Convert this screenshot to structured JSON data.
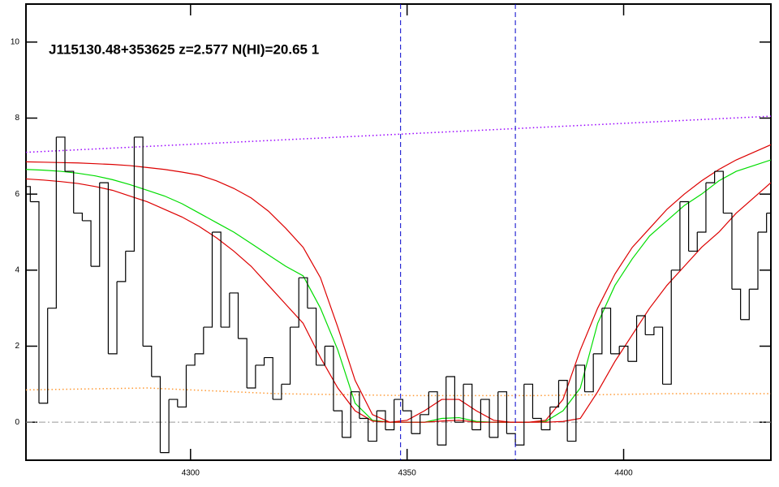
{
  "chart_data": {
    "type": "line",
    "title": "J115130.48+353625 z=2.577 N(HI)=20.65 1",
    "xlim": [
      4262,
      4434
    ],
    "ylim": [
      -1,
      11
    ],
    "xticks": [
      4300,
      4350,
      4400
    ],
    "yticks": [
      0,
      2,
      4,
      6,
      8,
      10
    ],
    "vlines": [
      4348.5,
      4375
    ],
    "vline_color": "#0000cc",
    "flux": {
      "color": "#000000",
      "step": true,
      "x": [
        4262,
        4264,
        4266,
        4268,
        4270,
        4272,
        4274,
        4276,
        4278,
        4280,
        4282,
        4284,
        4286,
        4288,
        4290,
        4292,
        4294,
        4296,
        4298,
        4300,
        4302,
        4304,
        4306,
        4308,
        4310,
        4312,
        4314,
        4316,
        4318,
        4320,
        4322,
        4324,
        4326,
        4328,
        4330,
        4332,
        4334,
        4336,
        4338,
        4340,
        4342,
        4344,
        4346,
        4348,
        4350,
        4352,
        4354,
        4356,
        4358,
        4360,
        4362,
        4364,
        4366,
        4368,
        4370,
        4372,
        4374,
        4376,
        4378,
        4380,
        4382,
        4384,
        4386,
        4388,
        4390,
        4392,
        4394,
        4396,
        4398,
        4400,
        4402,
        4404,
        4406,
        4408,
        4410,
        4412,
        4414,
        4416,
        4418,
        4420,
        4422,
        4424,
        4426,
        4428,
        4430,
        4432,
        4434
      ],
      "values": [
        6.2,
        5.8,
        0.5,
        3,
        7.5,
        6.6,
        5.5,
        5.3,
        4.1,
        6.3,
        1.8,
        3.7,
        4.5,
        7.5,
        2,
        1.2,
        -0.8,
        0.6,
        0.4,
        1.5,
        1.8,
        2.5,
        5,
        2.5,
        3.4,
        2.2,
        0.9,
        1.5,
        1.7,
        0.6,
        1,
        2.5,
        3.8,
        3,
        1.5,
        2,
        0.3,
        -0.4,
        0.8,
        0.1,
        -0.5,
        0.3,
        -0.2,
        0.6,
        0.3,
        -0.3,
        0.2,
        0.8,
        -0.6,
        1.2,
        0,
        1,
        -0.2,
        0.6,
        -0.4,
        0.8,
        -0.3,
        -0.6,
        1,
        0.1,
        -0.2,
        0.4,
        1.1,
        -0.5,
        1.5,
        0.8,
        1.8,
        3,
        1.8,
        2,
        1.6,
        2.8,
        2.3,
        2.5,
        1,
        4,
        5.8,
        4.5,
        5,
        6.3,
        6.6,
        5.5,
        3.5,
        2.7,
        3.5,
        5,
        5.5
      ]
    },
    "model_x": [
      4262,
      4266,
      4270,
      4274,
      4278,
      4282,
      4286,
      4290,
      4294,
      4298,
      4302,
      4306,
      4310,
      4314,
      4318,
      4322,
      4326,
      4330,
      4334,
      4338,
      4342,
      4346,
      4350,
      4354,
      4358,
      4362,
      4366,
      4370,
      4374,
      4378,
      4382,
      4386,
      4390,
      4394,
      4398,
      4402,
      4406,
      4410,
      4414,
      4418,
      4422,
      4426,
      4430,
      4434
    ],
    "series": [
      {
        "color": "#00dd00",
        "values": [
          6.65,
          6.63,
          6.6,
          6.55,
          6.48,
          6.38,
          6.25,
          6.1,
          5.95,
          5.75,
          5.5,
          5.25,
          5,
          4.7,
          4.4,
          4.1,
          3.85,
          3,
          1.9,
          0.5,
          0.05,
          0,
          0,
          0,
          0.1,
          0.12,
          0.02,
          0,
          0,
          0,
          0.02,
          0.3,
          0.9,
          2.6,
          3.6,
          4.3,
          4.9,
          5.3,
          5.7,
          6,
          6.35,
          6.6,
          6.75,
          6.9
        ]
      },
      {
        "color": "#dd0000",
        "values": [
          6.85,
          6.84,
          6.83,
          6.82,
          6.8,
          6.78,
          6.75,
          6.7,
          6.65,
          6.58,
          6.5,
          6.35,
          6.15,
          5.9,
          5.55,
          5.1,
          4.6,
          3.8,
          2.5,
          1.1,
          0.2,
          0,
          0.05,
          0.3,
          0.6,
          0.6,
          0.3,
          0.05,
          0,
          0,
          0.05,
          0.6,
          1.9,
          3,
          3.9,
          4.6,
          5.1,
          5.6,
          6,
          6.35,
          6.65,
          6.9,
          7.1,
          7.3
        ]
      },
      {
        "color": "#dd0000",
        "values": [
          6.4,
          6.37,
          6.33,
          6.28,
          6.2,
          6.1,
          5.95,
          5.8,
          5.6,
          5.4,
          5.15,
          4.85,
          4.5,
          4.1,
          3.6,
          3.1,
          2.6,
          1.7,
          0.9,
          0.3,
          0.03,
          0,
          0,
          0,
          0.03,
          0.05,
          0,
          0,
          0,
          0,
          0,
          0.02,
          0.1,
          0.8,
          1.6,
          2.3,
          3,
          3.6,
          4.1,
          4.6,
          5,
          5.5,
          5.9,
          6.3
        ]
      }
    ],
    "continuum": {
      "color": "#9900ff",
      "dotted": true,
      "x": [
        4262,
        4434
      ],
      "values": [
        7.1,
        8.05
      ]
    },
    "error": {
      "color": "#ff9933",
      "dotted": true,
      "x": [
        4262,
        4290,
        4320,
        4350,
        4380,
        4410,
        4434
      ],
      "values": [
        0.85,
        0.9,
        0.75,
        0.7,
        0.7,
        0.75,
        0.75
      ]
    }
  }
}
